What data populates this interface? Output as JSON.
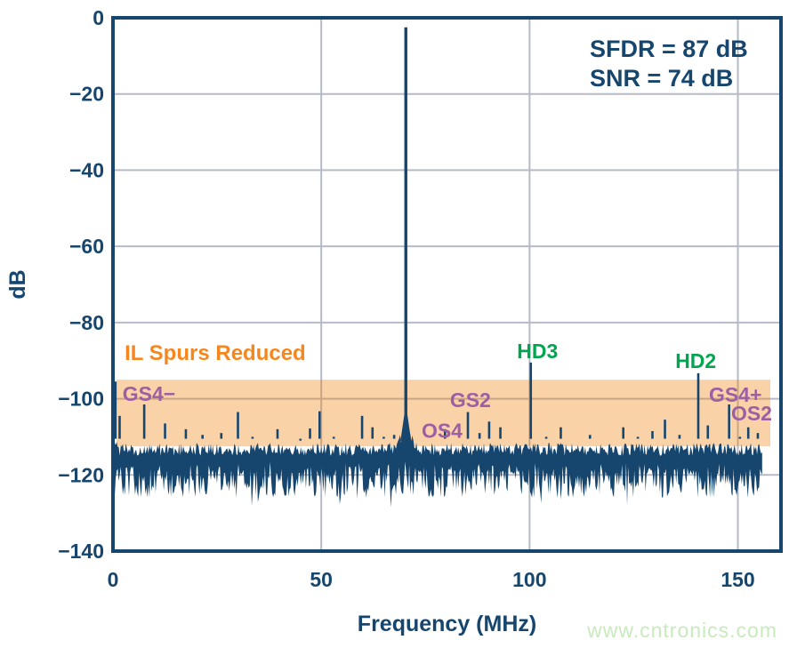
{
  "watermark": "www.cntronics.com",
  "colors": {
    "navy": "#16466E",
    "grid": "#B6BAC8",
    "band_color": "#F07D04",
    "band_opacity": 0.35,
    "orange_label": "#F6871F",
    "purple": "#9C5FA5",
    "green": "#00A550",
    "watermark_green": "#C8EABD"
  },
  "chart_data": {
    "type": "line",
    "title": "",
    "xlabel": "Frequency (MHz)",
    "ylabel": "dB",
    "xlim": [
      0,
      160.4
    ],
    "ylim": [
      -140,
      0
    ],
    "grid": true,
    "xticks": [
      {
        "v": 0,
        "label": "0"
      },
      {
        "v": 50,
        "label": "50"
      },
      {
        "v": 100,
        "label": "100"
      },
      {
        "v": 150,
        "label": "150"
      }
    ],
    "yticks": [
      {
        "v": 0,
        "label": "0"
      },
      {
        "v": -20,
        "label": "−20"
      },
      {
        "v": -40,
        "label": "−40"
      },
      {
        "v": -60,
        "label": "−60"
      },
      {
        "v": -80,
        "label": "−80"
      },
      {
        "v": -100,
        "label": "−100"
      },
      {
        "v": -120,
        "label": "−120"
      },
      {
        "v": -140,
        "label": "−140"
      }
    ],
    "annotations": [
      {
        "id": "sfdr",
        "text": "SFDR = 87 dB"
      },
      {
        "id": "snr",
        "text": "SNR = 74 dB"
      }
    ],
    "highlight_band": {
      "label": "IL Spurs Reduced",
      "x0_mhz": 0.85,
      "x1_mhz": 157.8,
      "y_top_db": -95,
      "y_bottom_db": -112.5
    },
    "band_label_pos": {
      "x_mhz": 2.8,
      "y_db": -89.8
    },
    "fundamental": {
      "freq_mhz": 70.3,
      "level_db": -2.5
    },
    "noise_floor_db": {
      "top": -112.5,
      "bottom": -122,
      "span_mhz": [
        0.4,
        155.9
      ]
    },
    "spurs": [
      [
        0.6,
        -95.5
      ],
      [
        1.6,
        -104.5
      ],
      [
        3.2,
        -110.5
      ],
      [
        7.5,
        -101.5
      ],
      [
        9.2,
        -110.5
      ],
      [
        12.5,
        -106.5
      ],
      [
        14.2,
        -110.5
      ],
      [
        17.5,
        -108
      ],
      [
        19.5,
        -110.5
      ],
      [
        21.5,
        -109.5
      ],
      [
        23.5,
        -110.5
      ],
      [
        26,
        -109
      ],
      [
        28,
        -110.5
      ],
      [
        30,
        -103.5
      ],
      [
        33.5,
        -110
      ],
      [
        36,
        -110.5
      ],
      [
        39.5,
        -108
      ],
      [
        41.5,
        -110.5
      ],
      [
        43,
        -110.5
      ],
      [
        45,
        -111
      ],
      [
        47.3,
        -107.8
      ],
      [
        49.6,
        -103.3
      ],
      [
        53,
        -110
      ],
      [
        55,
        -110.5
      ],
      [
        56.5,
        -110.5
      ],
      [
        59.8,
        -104.5
      ],
      [
        62.3,
        -107.5
      ],
      [
        65,
        -110
      ],
      [
        67.5,
        -109.5
      ],
      [
        74,
        -110.5
      ],
      [
        76.5,
        -110.5
      ],
      [
        79.7,
        -108
      ],
      [
        82,
        -110.5
      ],
      [
        85.2,
        -103.5
      ],
      [
        88,
        -109
      ],
      [
        90.3,
        -106
      ],
      [
        93,
        -107.5
      ],
      [
        96,
        -110.5
      ],
      [
        100.3,
        -90.5
      ],
      [
        104,
        -110
      ],
      [
        107.5,
        -107.5
      ],
      [
        109.5,
        -110.5
      ],
      [
        111,
        -110.5
      ],
      [
        114.5,
        -109.5
      ],
      [
        118,
        -110.5
      ],
      [
        120.5,
        -110.5
      ],
      [
        122.5,
        -107.5
      ],
      [
        126,
        -110
      ],
      [
        129.5,
        -108.5
      ],
      [
        132.5,
        -105.5
      ],
      [
        136,
        -109.5
      ],
      [
        138,
        -110.5
      ],
      [
        140.5,
        -93.3
      ],
      [
        142.8,
        -107
      ],
      [
        145,
        -110.5
      ],
      [
        147.9,
        -101.5
      ],
      [
        150.5,
        -110
      ],
      [
        152.5,
        -107.5
      ],
      [
        154.8,
        -109
      ]
    ],
    "peak_labels": [
      {
        "text": "GS4−",
        "color": "purple",
        "x_mhz": 2.3,
        "y_db": -100.6,
        "anchor": "start"
      },
      {
        "text": "OS4",
        "color": "purple",
        "x_mhz": 79.0,
        "y_db": -110.3,
        "anchor": "middle"
      },
      {
        "text": "GS2",
        "color": "purple",
        "x_mhz": 85.8,
        "y_db": -102.2,
        "anchor": "middle"
      },
      {
        "text": "HD3",
        "color": "green",
        "x_mhz": 101.9,
        "y_db": -89.4,
        "anchor": "middle"
      },
      {
        "text": "HD2",
        "color": "green",
        "x_mhz": 139.9,
        "y_db": -91.9,
        "anchor": "middle"
      },
      {
        "text": "GS4+",
        "color": "purple",
        "x_mhz": 149.4,
        "y_db": -100.8,
        "anchor": "middle"
      },
      {
        "text": "OS2",
        "color": "purple",
        "x_mhz": 153.3,
        "y_db": -105.7,
        "anchor": "middle"
      }
    ]
  }
}
